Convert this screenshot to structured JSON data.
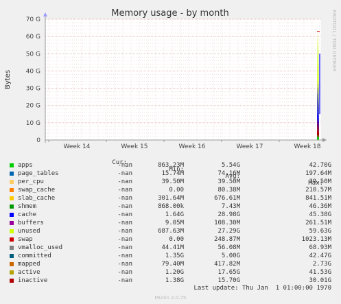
{
  "chart_data": {
    "type": "area",
    "title": "Memory usage - by month",
    "ylabel": "Bytes",
    "watermark": "RRDTOOL / TOBI OETIKER",
    "ylim": [
      0,
      70
    ],
    "y_unit": "G",
    "yticks": [
      "0",
      "10 G",
      "20 G",
      "30 G",
      "40 G",
      "50 G",
      "60 G",
      "70 G"
    ],
    "xticks": [
      "Week 14",
      "Week 15",
      "Week 16",
      "Week 17",
      "Week 18"
    ],
    "grid": true,
    "stacked_spike_at": "Week 18",
    "series_peak_totals_G": 63
  },
  "legend": {
    "headers": {
      "cur": "Cur:",
      "min": "Min:",
      "avg": "Avg:",
      "max": "Max:"
    },
    "rows": [
      {
        "name": "apps",
        "color": "#00cc00",
        "cur": "-nan",
        "min": "863.23M",
        "avg": "5.54G",
        "max": "42.70G"
      },
      {
        "name": "page_tables",
        "color": "#0066b3",
        "cur": "-nan",
        "min": "15.74M",
        "avg": "74.16M",
        "max": "197.64M"
      },
      {
        "name": "per_cpu",
        "color": "#ffcc66",
        "cur": "-nan",
        "min": "39.50M",
        "avg": "39.50M",
        "max": "39.50M"
      },
      {
        "name": "swap_cache",
        "color": "#ff8000",
        "cur": "-nan",
        "min": "0.00",
        "avg": "80.38M",
        "max": "210.57M"
      },
      {
        "name": "slab_cache",
        "color": "#ffcc00",
        "cur": "-nan",
        "min": "301.64M",
        "avg": "676.61M",
        "max": "841.51M"
      },
      {
        "name": "shmem",
        "color": "#009900",
        "cur": "-nan",
        "min": "868.00k",
        "avg": "7.43M",
        "max": "46.36M"
      },
      {
        "name": "cache",
        "color": "#0000ff",
        "cur": "-nan",
        "min": "1.64G",
        "avg": "28.98G",
        "max": "45.38G"
      },
      {
        "name": "buffers",
        "color": "#990099",
        "cur": "-nan",
        "min": "9.05M",
        "avg": "108.30M",
        "max": "261.51M"
      },
      {
        "name": "unused",
        "color": "#ccff00",
        "cur": "-nan",
        "min": "687.63M",
        "avg": "27.29G",
        "max": "59.63G"
      },
      {
        "name": "swap",
        "color": "#cc0000",
        "cur": "-nan",
        "min": "0.00",
        "avg": "248.87M",
        "max": "1023.13M"
      },
      {
        "name": "vmalloc_used",
        "color": "#808080",
        "cur": "-nan",
        "min": "44.41M",
        "avg": "56.08M",
        "max": "68.93M"
      },
      {
        "name": "committed",
        "color": "#005f7f",
        "cur": "-nan",
        "min": "1.35G",
        "avg": "5.00G",
        "max": "42.47G"
      },
      {
        "name": "mapped",
        "color": "#cc6600",
        "cur": "-nan",
        "min": "79.40M",
        "avg": "417.82M",
        "max": "2.73G"
      },
      {
        "name": "active",
        "color": "#b3a200",
        "cur": "-nan",
        "min": "1.20G",
        "avg": "17.65G",
        "max": "41.53G"
      },
      {
        "name": "inactive",
        "color": "#b30000",
        "cur": "-nan",
        "min": "1.38G",
        "avg": "15.70G",
        "max": "30.01G"
      }
    ]
  },
  "footer": {
    "last_update": "Last update: Thu Jan  1 01:00:00 1970",
    "munin": "Munin 2.0.75"
  }
}
